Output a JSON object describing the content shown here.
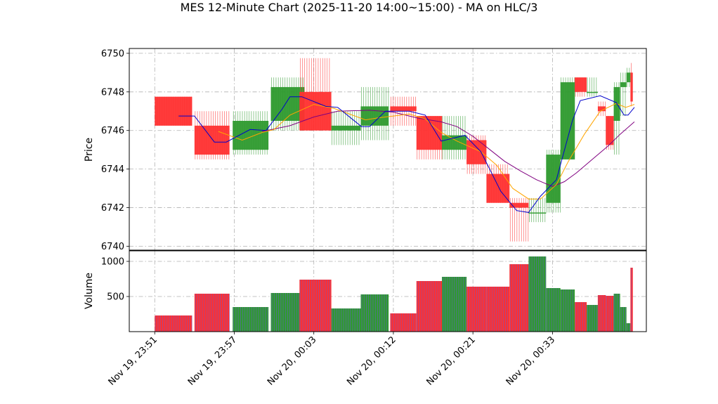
{
  "chart_data": {
    "type": "candlestick",
    "title": "MES 12-Minute Chart (2025-11-20 14:00~15:00) - MA on HLC/3",
    "price_panel": {
      "ylabel": "Price",
      "ylim": [
        6739.8,
        6750.25
      ],
      "yticks": [
        6740,
        6742,
        6744,
        6746,
        6748,
        6750
      ],
      "grid": true
    },
    "volume_panel": {
      "ylabel": "Volume",
      "ylim": [
        0,
        1150
      ],
      "yticks": [
        500,
        1000
      ],
      "grid": true
    },
    "xlim": [
      -3.2,
      61.8
    ],
    "xticks": [
      {
        "x": 0,
        "label": "Nov 19, 23:51"
      },
      {
        "x": 10,
        "label": "Nov 19, 23:57"
      },
      {
        "x": 20,
        "label": "Nov 20, 00:03"
      },
      {
        "x": 30,
        "label": "Nov 20, 00:12"
      },
      {
        "x": 40,
        "label": "Nov 20, 00:21"
      },
      {
        "x": 50,
        "label": "Nov 20, 00:33"
      }
    ],
    "colors": {
      "up": "#2e9a2e",
      "down": "#ff3030",
      "ma_fast": "#0000cc",
      "ma_mid": "#ffa500",
      "ma_slow": "#800080"
    },
    "candles": [
      {
        "x_start": 0,
        "x_end": 4.7,
        "open": 6747.75,
        "close": 6746.25,
        "high": 6747.75,
        "low": 6746.25,
        "volume": 230
      },
      {
        "x_start": 5,
        "x_end": 9.4,
        "open": 6746.25,
        "close": 6744.75,
        "high": 6747.0,
        "low": 6744.5,
        "volume": 540
      },
      {
        "x_start": 9.8,
        "x_end": 14.3,
        "open": 6745.0,
        "close": 6746.5,
        "high": 6747.0,
        "low": 6744.75,
        "volume": 350
      },
      {
        "x_start": 14.6,
        "x_end": 18.8,
        "open": 6746.5,
        "close": 6748.25,
        "high": 6748.75,
        "low": 6746.0,
        "volume": 550
      },
      {
        "x_start": 18.2,
        "x_end": 22.2,
        "open": 6748.0,
        "close": 6746.0,
        "high": 6749.75,
        "low": 6746.0,
        "volume": 740
      },
      {
        "x_start": 22.2,
        "x_end": 25.9,
        "open": 6746.0,
        "close": 6746.25,
        "high": 6747.0,
        "low": 6745.25,
        "volume": 330
      },
      {
        "x_start": 25.9,
        "x_end": 29.4,
        "open": 6746.25,
        "close": 6747.25,
        "high": 6748.25,
        "low": 6745.5,
        "volume": 530
      },
      {
        "x_start": 29.6,
        "x_end": 32.9,
        "open": 6747.25,
        "close": 6747.0,
        "high": 6747.75,
        "low": 6746.25,
        "volume": 260
      },
      {
        "x_start": 32.9,
        "x_end": 36.1,
        "open": 6746.75,
        "close": 6745.0,
        "high": 6746.75,
        "low": 6744.5,
        "volume": 720
      },
      {
        "x_start": 36.1,
        "x_end": 39.2,
        "open": 6745.0,
        "close": 6745.75,
        "high": 6746.75,
        "low": 6744.5,
        "volume": 780
      },
      {
        "x_start": 39.2,
        "x_end": 41.7,
        "open": 6745.5,
        "close": 6744.25,
        "high": 6745.75,
        "low": 6743.75,
        "volume": 640
      },
      {
        "x_start": 41.7,
        "x_end": 44.6,
        "open": 6743.75,
        "close": 6742.25,
        "high": 6744.25,
        "low": 6742.25,
        "volume": 640
      },
      {
        "x_start": 44.6,
        "x_end": 47.0,
        "open": 6742.25,
        "close": 6742.0,
        "high": 6742.5,
        "low": 6740.25,
        "volume": 960
      },
      {
        "x_start": 47.0,
        "x_end": 49.2,
        "open": 6741.75,
        "close": 6741.75,
        "high": 6742.5,
        "low": 6741.25,
        "volume": 1070
      },
      {
        "x_start": 49.2,
        "x_end": 51.0,
        "open": 6742.25,
        "close": 6744.75,
        "high": 6745.0,
        "low": 6741.75,
        "volume": 620
      },
      {
        "x_start": 51.0,
        "x_end": 52.8,
        "open": 6744.5,
        "close": 6748.5,
        "high": 6748.75,
        "low": 6744.5,
        "volume": 600
      },
      {
        "x_start": 52.8,
        "x_end": 54.3,
        "open": 6748.75,
        "close": 6748.0,
        "high": 6748.75,
        "low": 6747.75,
        "volume": 420
      },
      {
        "x_start": 54.3,
        "x_end": 55.7,
        "open": 6748.0,
        "close": 6748.0,
        "high": 6748.75,
        "low": 6747.75,
        "volume": 380
      },
      {
        "x_start": 55.7,
        "x_end": 56.7,
        "open": 6747.25,
        "close": 6747.0,
        "high": 6747.5,
        "low": 6746.75,
        "volume": 520
      },
      {
        "x_start": 56.7,
        "x_end": 57.7,
        "open": 6746.75,
        "close": 6745.25,
        "high": 6746.75,
        "low": 6745.0,
        "volume": 510
      },
      {
        "x_start": 57.7,
        "x_end": 58.5,
        "open": 6746.5,
        "close": 6748.25,
        "high": 6748.5,
        "low": 6744.75,
        "volume": 540
      },
      {
        "x_start": 58.5,
        "x_end": 59.3,
        "open": 6748.25,
        "close": 6748.5,
        "high": 6749.0,
        "low": 6746.75,
        "volume": 350
      },
      {
        "x_start": 59.3,
        "x_end": 59.8,
        "open": 6748.5,
        "close": 6749.0,
        "high": 6749.25,
        "low": 6748.25,
        "volume": 120
      },
      {
        "x_start": 59.8,
        "x_end": 60.1,
        "open": 6749.0,
        "close": 6747.5,
        "high": 6749.5,
        "low": 6747.25,
        "volume": 910
      }
    ],
    "ma_fast": [
      [
        3,
        6746.75
      ],
      [
        5,
        6746.75
      ],
      [
        7.5,
        6745.4
      ],
      [
        9,
        6745.4
      ],
      [
        12,
        6746.05
      ],
      [
        14,
        6746.0
      ],
      [
        16,
        6747.1
      ],
      [
        17,
        6747.75
      ],
      [
        18.5,
        6747.75
      ],
      [
        21.5,
        6747.25
      ],
      [
        23,
        6747.2
      ],
      [
        26,
        6746.2
      ],
      [
        27,
        6746.2
      ],
      [
        29,
        6747.0
      ],
      [
        32,
        6747.0
      ],
      [
        34,
        6746.8
      ],
      [
        36,
        6745.45
      ],
      [
        39,
        6745.75
      ],
      [
        41,
        6744.9
      ],
      [
        43.5,
        6742.85
      ],
      [
        45.5,
        6741.85
      ],
      [
        47,
        6741.75
      ],
      [
        48.5,
        6742.6
      ],
      [
        50.5,
        6743.45
      ],
      [
        52.5,
        6746.5
      ],
      [
        53.5,
        6747.55
      ],
      [
        56,
        6747.8
      ],
      [
        58,
        6747.45
      ],
      [
        59,
        6746.8
      ],
      [
        59.5,
        6746.8
      ],
      [
        60.3,
        6747.2
      ]
    ],
    "ma_mid": [
      [
        8,
        6745.95
      ],
      [
        11,
        6745.5
      ],
      [
        13.5,
        6745.9
      ],
      [
        15,
        6746.05
      ],
      [
        17,
        6746.8
      ],
      [
        20,
        6747.35
      ],
      [
        22.5,
        6747.15
      ],
      [
        24.5,
        6746.85
      ],
      [
        26.5,
        6746.55
      ],
      [
        28,
        6746.65
      ],
      [
        32,
        6746.85
      ],
      [
        34,
        6746.6
      ],
      [
        36,
        6745.9
      ],
      [
        38,
        6745.45
      ],
      [
        41,
        6744.9
      ],
      [
        43,
        6744.2
      ],
      [
        45,
        6743.0
      ],
      [
        47,
        6742.45
      ],
      [
        48.5,
        6742.45
      ],
      [
        50.5,
        6743.2
      ],
      [
        52,
        6744.4
      ],
      [
        54,
        6745.8
      ],
      [
        56,
        6747.0
      ],
      [
        58,
        6747.4
      ],
      [
        59.2,
        6747.2
      ],
      [
        60.3,
        6747.35
      ]
    ],
    "ma_slow": [
      [
        13.5,
        6745.95
      ],
      [
        17,
        6746.25
      ],
      [
        20,
        6746.7
      ],
      [
        23,
        6747.0
      ],
      [
        27,
        6747.05
      ],
      [
        30,
        6746.95
      ],
      [
        33,
        6746.65
      ],
      [
        36,
        6746.45
      ],
      [
        38,
        6746.2
      ],
      [
        40,
        6745.7
      ],
      [
        42,
        6745.05
      ],
      [
        44,
        6744.4
      ],
      [
        46,
        6743.9
      ],
      [
        48,
        6743.45
      ],
      [
        50,
        6743.1
      ],
      [
        51.5,
        6743.35
      ],
      [
        53,
        6743.8
      ],
      [
        55,
        6744.5
      ],
      [
        57,
        6745.2
      ],
      [
        58.5,
        6745.8
      ],
      [
        60.3,
        6746.45
      ]
    ]
  }
}
